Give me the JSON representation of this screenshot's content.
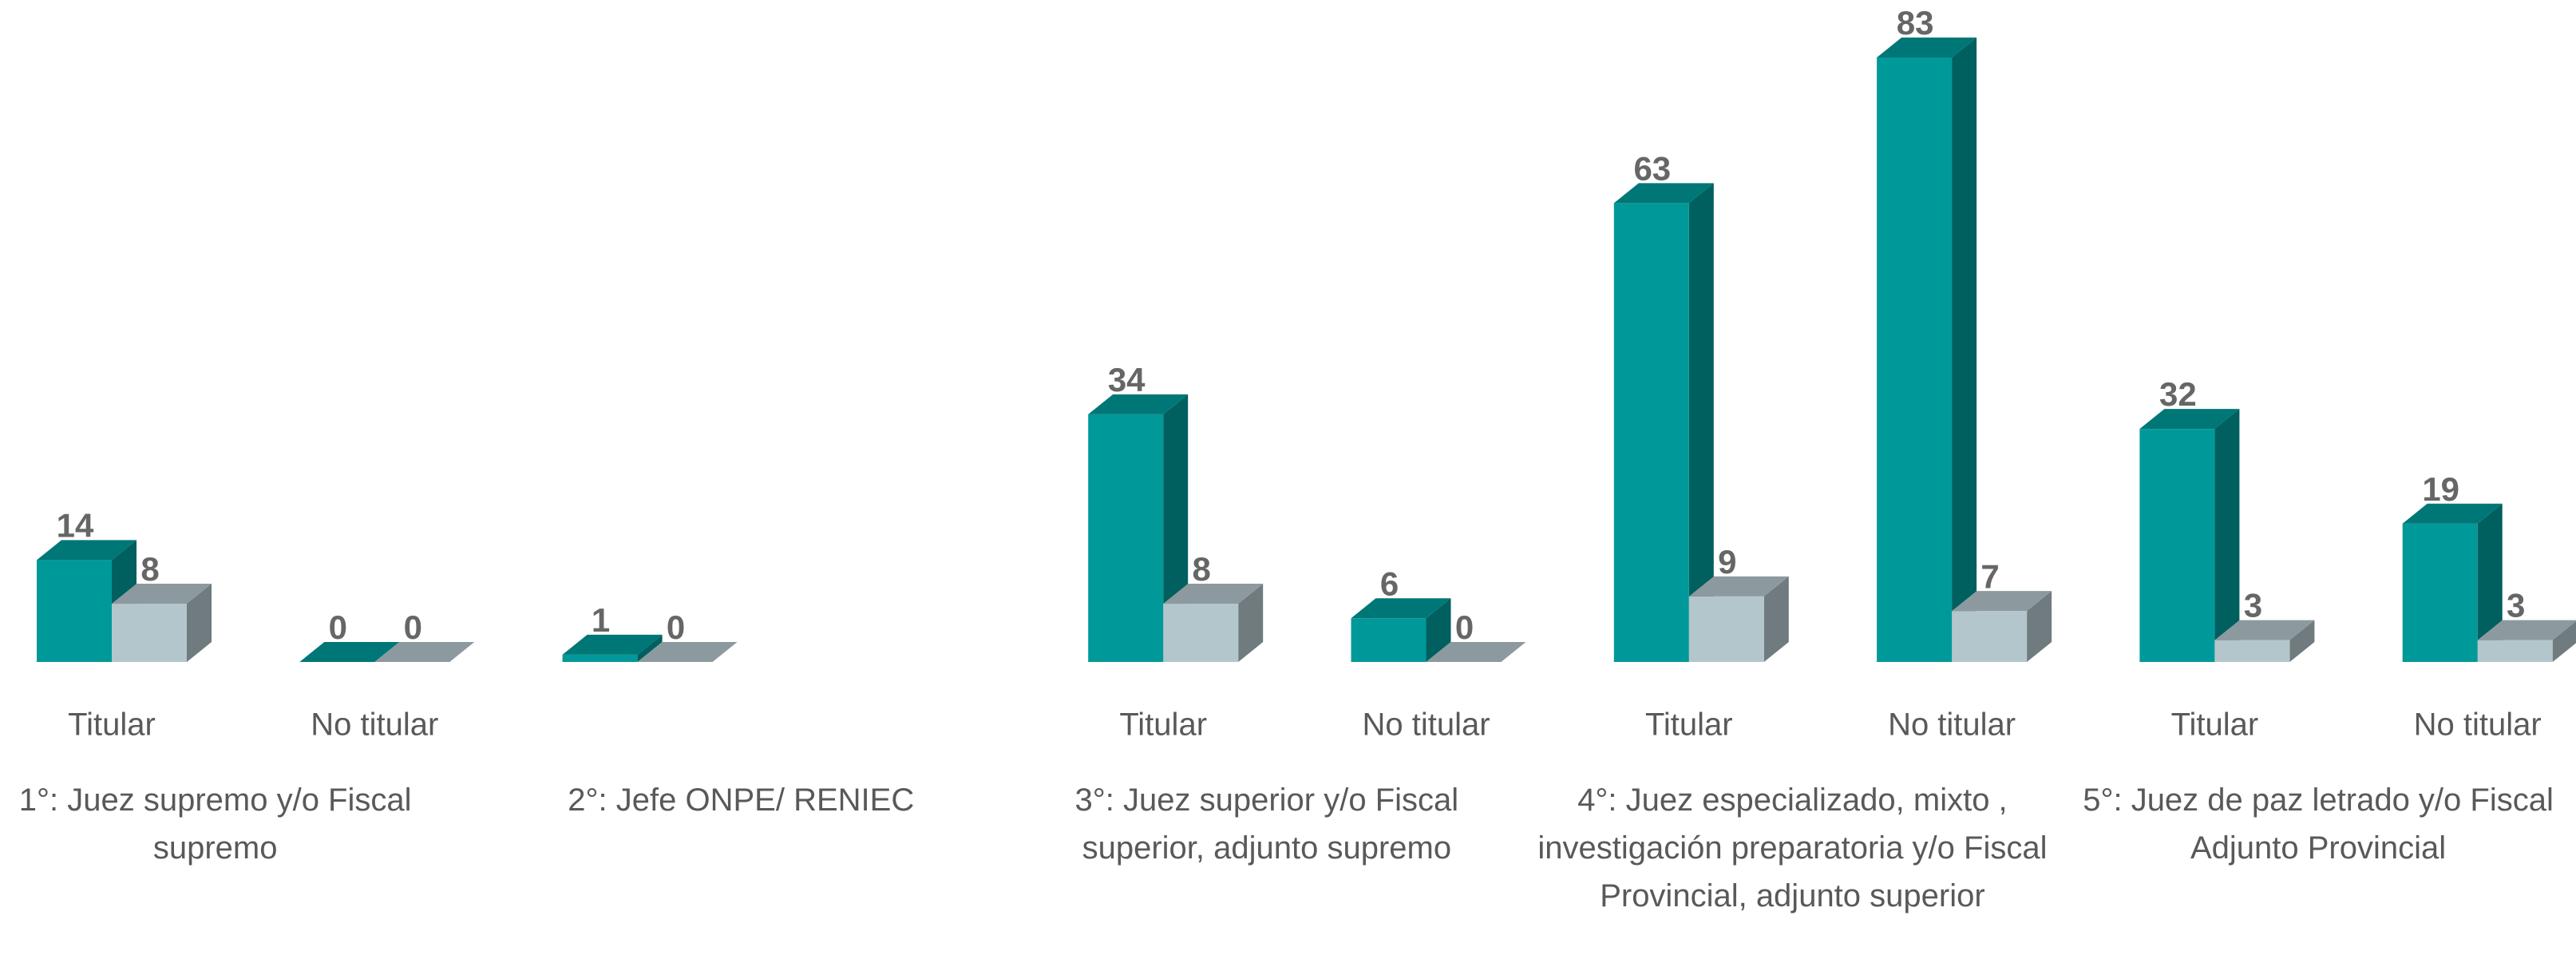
{
  "chart_data": {
    "type": "bar3d",
    "categories": [
      "Titular",
      "No titular",
      null,
      null,
      "Titular",
      "No titular",
      "Titular",
      "No titular",
      "Titular",
      "No titular"
    ],
    "groups": [
      "1°: Juez supremo y/o Fiscal supremo",
      "2°: Jefe ONPE/ RENIEC",
      "3°: Juez superior y/o Fiscal superior, adjunto supremo",
      "4°: Juez especializado, mixto , investigación preparatoria y/o Fiscal Provincial, adjunto superior",
      "5°: Juez de paz letrado y/o Fiscal Adjunto Provincial"
    ],
    "series": [
      {
        "color": "#009999",
        "values": [
          14,
          0,
          1,
          null,
          34,
          6,
          63,
          83,
          32,
          19
        ]
      },
      {
        "color": "#b3c6cc",
        "values": [
          8,
          0,
          0,
          null,
          8,
          0,
          9,
          7,
          3,
          3
        ]
      }
    ],
    "value_labels_shown": true
  }
}
